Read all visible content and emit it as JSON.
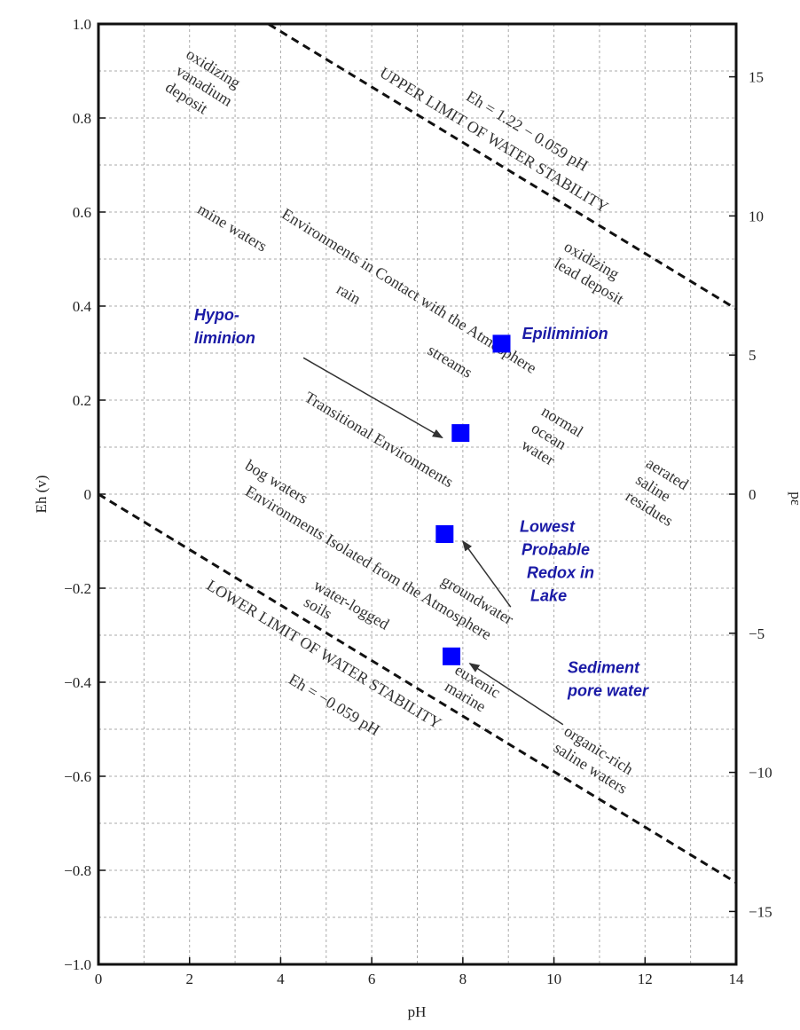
{
  "chart_data": {
    "type": "scatter",
    "xlabel": "pH",
    "ylabel": "Eh (v)",
    "y2label": "pε",
    "xlim": [
      0,
      14
    ],
    "ylim": [
      -1.0,
      1.0
    ],
    "y2lim": [
      -16.9,
      16.9
    ],
    "grid": true,
    "x_ticks": [
      "0",
      "2",
      "4",
      "6",
      "8",
      "10",
      "12",
      "14"
    ],
    "y_ticks": [
      "1.0",
      "0.8",
      "0.6",
      "0.4",
      "0.2",
      "0",
      "−0.2",
      "−0.4",
      "−0.6",
      "−0.8",
      "−1.0"
    ],
    "y2_ticks": [
      "15",
      "10",
      "5",
      "0",
      "−5",
      "−10",
      "−15"
    ],
    "limit_lines": [
      {
        "name": "upper",
        "equation": "Eh = 1.22 − 0.059 pH",
        "label": "UPPER LIMIT OF WATER STABILITY",
        "intercept": 1.22,
        "slope": -0.059
      },
      {
        "name": "lower",
        "equation": "Eh = −0.059 pH",
        "label": "LOWER LIMIT OF WATER STABILITY",
        "intercept": 0.0,
        "slope": -0.059
      }
    ],
    "points": [
      {
        "name": "Epiliminion",
        "x": 8.85,
        "y": 0.32,
        "color": "#0000ff"
      },
      {
        "name": "Hypolimnion",
        "x": 7.95,
        "y": 0.13,
        "color": "#0000ff"
      },
      {
        "name": "Lowest Probable Redox in Lake",
        "x": 7.6,
        "y": -0.085,
        "color": "#0000ff"
      },
      {
        "name": "Sediment pore water",
        "x": 7.75,
        "y": -0.345,
        "color": "#0000ff"
      }
    ],
    "arrows": [
      {
        "from": [
          4.5,
          0.29
        ],
        "to": [
          7.55,
          0.12
        ]
      },
      {
        "from": [
          9.05,
          -0.24
        ],
        "to": [
          8.0,
          -0.1
        ]
      },
      {
        "from": [
          10.2,
          -0.49
        ],
        "to": [
          8.15,
          -0.36
        ]
      }
    ],
    "zone_labels": [
      {
        "lines": [
          "oxidizing",
          "vanadium",
          "deposit"
        ],
        "x": 1.9,
        "y": 0.93,
        "angle": 32
      },
      {
        "lines": [
          "mine waters"
        ],
        "x": 2.15,
        "y": 0.6,
        "angle": 31
      },
      {
        "lines": [
          "Environments in Contact with the Atmosphere"
        ],
        "x": 4.0,
        "y": 0.59,
        "angle": 32
      },
      {
        "lines": [
          "rain"
        ],
        "x": 5.2,
        "y": 0.43,
        "angle": 31
      },
      {
        "lines": [
          "streams"
        ],
        "x": 7.2,
        "y": 0.3,
        "angle": 31
      },
      {
        "lines": [
          "Transitional Environments"
        ],
        "x": 4.5,
        "y": 0.2,
        "angle": 31
      },
      {
        "lines": [
          "normal",
          "ocean",
          "water"
        ],
        "x": 9.7,
        "y": 0.17,
        "angle": 31
      },
      {
        "lines": [
          "aerated",
          "saline",
          "residues"
        ],
        "x": 12.0,
        "y": 0.06,
        "angle": 32
      },
      {
        "lines": [
          "oxidizing",
          "lead deposit"
        ],
        "x": 10.2,
        "y": 0.52,
        "angle": 30
      },
      {
        "lines": [
          "bog waters"
        ],
        "x": 3.2,
        "y": 0.055,
        "angle": 31
      },
      {
        "lines": [
          "Environments Isolated from the Atmosphere"
        ],
        "x": 3.2,
        "y": 0.0,
        "angle": 31
      },
      {
        "lines": [
          "groundwater"
        ],
        "x": 7.5,
        "y": -0.19,
        "angle": 31
      },
      {
        "lines": [
          "water-logged",
          "soils"
        ],
        "x": 4.7,
        "y": -0.2,
        "angle": 30
      },
      {
        "lines": [
          "euxenic",
          "marine"
        ],
        "x": 7.8,
        "y": -0.38,
        "angle": 31
      },
      {
        "lines": [
          "organic-rich",
          "saline waters"
        ],
        "x": 10.2,
        "y": -0.51,
        "angle": 32
      }
    ],
    "blue_labels": [
      {
        "lines": [
          "Epiliminion"
        ],
        "x": 9.3,
        "y": 0.33
      },
      {
        "lines": [
          "Hypo-",
          "liminion"
        ],
        "x": 2.1,
        "y": 0.37
      },
      {
        "lines": [
          "Lowest",
          "Probable",
          "Redox in",
          "Lake"
        ],
        "x": 9.25,
        "y": -0.08
      },
      {
        "lines": [
          "Sediment",
          "pore water"
        ],
        "x": 10.3,
        "y": -0.38
      }
    ]
  }
}
